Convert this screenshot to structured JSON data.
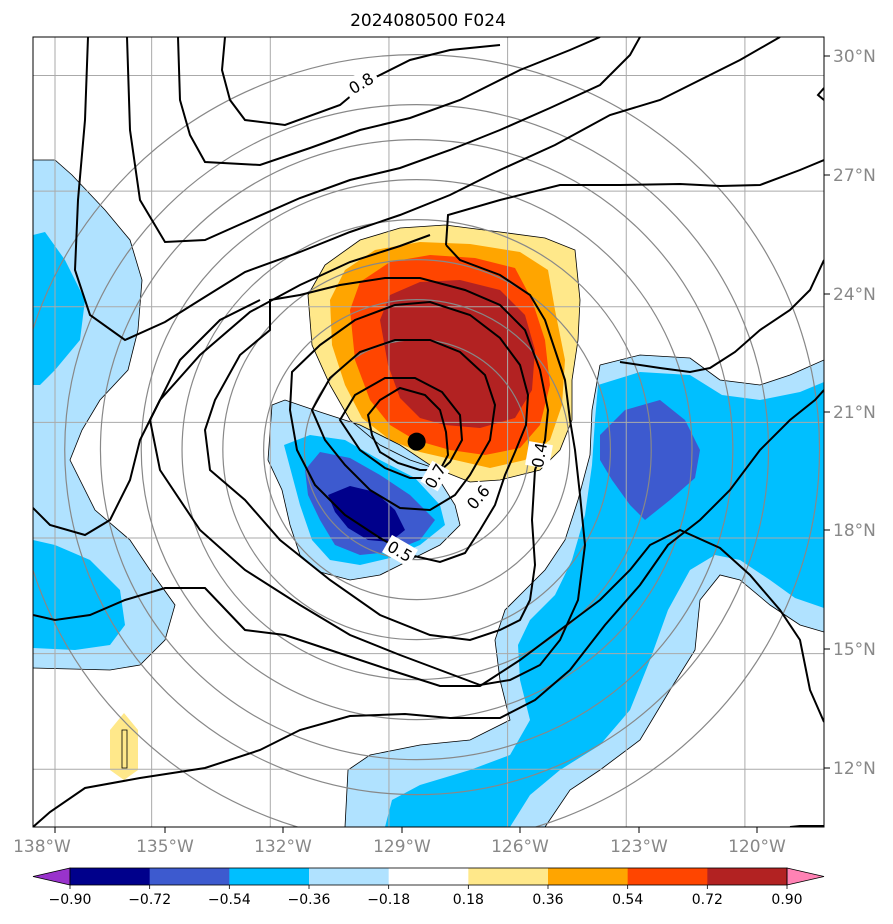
{
  "chart_data": {
    "type": "map-contour",
    "title": "2024080500 F024",
    "x_ticks": [
      "138°W",
      "135°W",
      "132°W",
      "129°W",
      "126°W",
      "123°W",
      "120°W"
    ],
    "x_tick_values": [
      -138,
      -135,
      -132,
      -129,
      -126,
      -123,
      -120
    ],
    "y_ticks": [
      "12°N",
      "15°N",
      "18°N",
      "21°N",
      "24°N",
      "27°N",
      "30°N"
    ],
    "y_tick_values": [
      12,
      15,
      18,
      21,
      24,
      27,
      30
    ],
    "xlim": [
      -138.0,
      -118.0
    ],
    "ylim": [
      10.5,
      31.0
    ],
    "grid": true,
    "storm_center": {
      "lon": -128.3,
      "lat": 20.5
    },
    "contour_labels": [
      {
        "text": "0.8",
        "lon": -128.0,
        "lat": 29.9
      },
      {
        "text": "0.7",
        "lon": -128.8,
        "lat": 19.3
      },
      {
        "text": "0.6",
        "lon": -126.2,
        "lat": 18.4
      },
      {
        "text": "0.5",
        "lon": -129.8,
        "lat": 17.5
      },
      {
        "text": "0.4",
        "lon": -125.4,
        "lat": 19.9
      }
    ],
    "colorbar": {
      "ticks": [
        "−0.90",
        "−0.72",
        "−0.54",
        "−0.36",
        "−0.18",
        "0.18",
        "0.36",
        "0.54",
        "0.72",
        "0.90"
      ],
      "levels": [
        -0.9,
        -0.72,
        -0.54,
        -0.36,
        -0.18,
        0.18,
        0.36,
        0.54,
        0.72,
        0.9
      ],
      "colors": [
        "#9933cc",
        "#00008b",
        "#3d5acf",
        "#00bfff",
        "#b0e2ff",
        "#ffffff",
        "#ffe88a",
        "#ffa500",
        "#ff4500",
        "#b22222",
        "#ff82b4"
      ]
    }
  }
}
